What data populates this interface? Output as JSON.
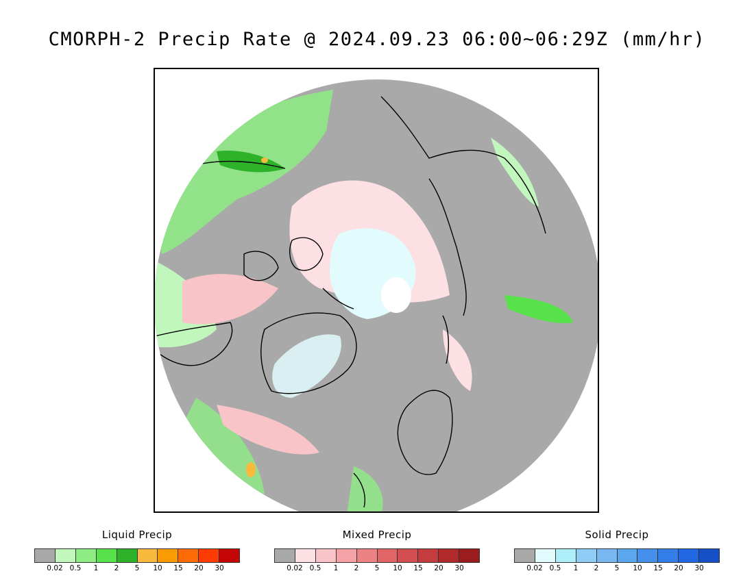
{
  "title": "CMORPH-2 Precip Rate @ 2024.09.23 06:00~06:29Z (mm/hr)",
  "map": {
    "projection": "polar-stereographic-north",
    "background_color": "#a9a9a9",
    "coastline_color": "#000000"
  },
  "legends": [
    {
      "title": "Liquid Precip",
      "colors": [
        "#a9a9a9",
        "#c1f7bd",
        "#8eec84",
        "#57e24c",
        "#2db229",
        "#f8b93d",
        "#fb9b03",
        "#fd6b06",
        "#fe3a05",
        "#c40606"
      ],
      "ticks": [
        "0.02",
        "0.5",
        "1",
        "2",
        "5",
        "10",
        "15",
        "20",
        "30"
      ]
    },
    {
      "title": "Mixed Precip",
      "colors": [
        "#a9a9a9",
        "#fde0e3",
        "#f9c4c8",
        "#f4a2a6",
        "#ec8284",
        "#e16467",
        "#d34e50",
        "#c43c3e",
        "#b02a2c",
        "#9a1c1e"
      ],
      "ticks": [
        "0.02",
        "0.5",
        "1",
        "2",
        "5",
        "10",
        "15",
        "20",
        "30"
      ]
    },
    {
      "title": "Solid Precip",
      "colors": [
        "#a9a9a9",
        "#e2fcfe",
        "#aeeef9",
        "#90cdf6",
        "#78b7f2",
        "#5aa7ee",
        "#4690eb",
        "#347eea",
        "#2166e3",
        "#1550c8"
      ],
      "ticks": [
        "0.02",
        "0.5",
        "1",
        "2",
        "5",
        "10",
        "15",
        "20",
        "30"
      ]
    }
  ]
}
